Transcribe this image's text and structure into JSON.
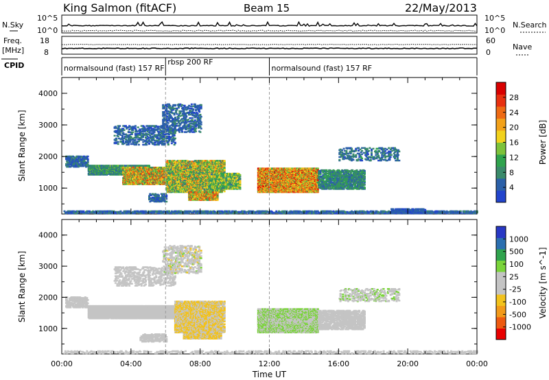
{
  "header": {
    "station": "King Salmon (fitACF)",
    "beam": "Beam 15",
    "date": "22/May/2013"
  },
  "strips": {
    "nsky_label": "N.Sky",
    "nsearch_label": "N.Search",
    "freq_label_line1": "Freq.",
    "freq_label_line2": "[MHz]",
    "nave_label": "Nave",
    "cpid_label": "CPID",
    "noise_left_ticks": [
      "10^5",
      "10^0"
    ],
    "noise_right_ticks": [
      "10^5",
      "10^0"
    ],
    "freq_left_ticks": [
      "18",
      "8"
    ],
    "freq_right_ticks": [
      "60",
      "0"
    ]
  },
  "cpid_segments": [
    {
      "label": "normalsound (fast) 157 RF",
      "start_hour": 0.0
    },
    {
      "label": "rbsp 200 RF",
      "start_hour": 6.0
    },
    {
      "label": "normalsound (fast) 157 RF",
      "start_hour": 12.0
    }
  ],
  "colors": {
    "power": [
      "#2244cc",
      "#2b60a8",
      "#3a8a6a",
      "#2fa34d",
      "#7dc23a",
      "#f2d21c",
      "#f2a11a",
      "#ee6a14",
      "#e83010",
      "#d80000"
    ],
    "velocity": [
      "#e80000",
      "#ee5a10",
      "#f29a1a",
      "#f2c21c",
      "#c4c4c4",
      "#c4c4c4",
      "#7ad43a",
      "#2fa34d",
      "#2b6fb0",
      "#2838c4"
    ]
  },
  "chart_data": [
    {
      "type": "heatmap",
      "title": "Power",
      "xlabel": "",
      "ylabel": "Slant Range [km]",
      "xlim": [
        0,
        24
      ],
      "ylim": [
        180,
        4500
      ],
      "x_ticks": [],
      "y_ticks": [
        "1000",
        "2000",
        "3000",
        "4000"
      ],
      "colorbar": {
        "label": "Power [dB]",
        "range": [
          0,
          32
        ],
        "tick_values": [
          4,
          8,
          12,
          16,
          20,
          24,
          28
        ],
        "tick_labels": [
          "4",
          "8",
          "12",
          "16",
          "20",
          "24",
          "28"
        ]
      },
      "scatter_regions": [
        {
          "t0": 0.1,
          "t1": 24.0,
          "r0": 230,
          "r1": 310,
          "density": 0.55,
          "values": [
            2,
            8
          ]
        },
        {
          "t0": 0.2,
          "t1": 1.5,
          "r0": 1700,
          "r1": 2050,
          "density": 0.5,
          "values": [
            2,
            8
          ]
        },
        {
          "t0": 1.5,
          "t1": 5.0,
          "r0": 1450,
          "r1": 1750,
          "density": 0.9,
          "values": [
            4,
            14
          ]
        },
        {
          "t0": 3.5,
          "t1": 8.0,
          "r0": 1150,
          "r1": 1700,
          "density": 0.8,
          "values": [
            8,
            28
          ]
        },
        {
          "t0": 6.0,
          "t1": 9.4,
          "r0": 900,
          "r1": 1900,
          "density": 0.65,
          "values": [
            6,
            24
          ]
        },
        {
          "t0": 7.3,
          "t1": 9.0,
          "r0": 650,
          "r1": 900,
          "density": 0.8,
          "values": [
            10,
            28
          ]
        },
        {
          "t0": 8.5,
          "t1": 10.3,
          "r0": 1000,
          "r1": 1500,
          "density": 0.6,
          "values": [
            6,
            20
          ]
        },
        {
          "t0": 11.3,
          "t1": 14.8,
          "r0": 900,
          "r1": 1650,
          "density": 0.9,
          "values": [
            12,
            30
          ]
        },
        {
          "t0": 14.8,
          "t1": 17.5,
          "r0": 1000,
          "r1": 1600,
          "density": 0.5,
          "values": [
            4,
            12
          ]
        },
        {
          "t0": 3.0,
          "t1": 6.5,
          "r0": 2400,
          "r1": 3000,
          "density": 0.25,
          "values": [
            2,
            8
          ]
        },
        {
          "t0": 5.8,
          "t1": 8.0,
          "r0": 2800,
          "r1": 3700,
          "density": 0.25,
          "values": [
            2,
            8
          ]
        },
        {
          "t0": 16.0,
          "t1": 19.5,
          "r0": 1900,
          "r1": 2300,
          "density": 0.2,
          "values": [
            2,
            10
          ]
        },
        {
          "t0": 5.0,
          "t1": 6.0,
          "r0": 600,
          "r1": 850,
          "density": 0.4,
          "values": [
            2,
            8
          ]
        },
        {
          "t0": 19.0,
          "t1": 21.0,
          "r0": 230,
          "r1": 380,
          "density": 0.6,
          "values": [
            2,
            6
          ]
        }
      ]
    },
    {
      "type": "heatmap",
      "title": "Velocity",
      "xlabel": "Time UT",
      "ylabel": "Slant Range [km]",
      "xlim": [
        0,
        24
      ],
      "ylim": [
        180,
        4500
      ],
      "x_ticks": [
        "00:00",
        "04:00",
        "08:00",
        "12:00",
        "16:00",
        "20:00",
        "00:00"
      ],
      "y_ticks": [
        "1000",
        "2000",
        "3000",
        "4000"
      ],
      "colorbar": {
        "label": "Velocity [m s^-1]",
        "range": [
          -1250,
          1250
        ],
        "tick_values": [
          -1000,
          -500,
          -100,
          -25,
          25,
          100,
          500,
          1000
        ],
        "tick_labels": [
          "-1000",
          "-500",
          "-100",
          "-25",
          "25",
          "100",
          "500",
          "1000"
        ]
      },
      "scatter_regions": [
        {
          "t0": 0.1,
          "t1": 24.0,
          "r0": 230,
          "r1": 310,
          "density": 0.3,
          "values": [
            -25,
            25
          ]
        },
        {
          "t0": 0.2,
          "t1": 1.5,
          "r0": 1700,
          "r1": 2050,
          "density": 0.5,
          "values": [
            -25,
            25
          ]
        },
        {
          "t0": 1.5,
          "t1": 7.5,
          "r0": 1350,
          "r1": 1750,
          "density": 0.95,
          "values": [
            -25,
            25
          ]
        },
        {
          "t0": 6.5,
          "t1": 9.4,
          "r0": 900,
          "r1": 1900,
          "density": 0.6,
          "values": [
            -500,
            -50
          ]
        },
        {
          "t0": 7.0,
          "t1": 9.2,
          "r0": 700,
          "r1": 900,
          "density": 0.8,
          "values": [
            -500,
            -100
          ]
        },
        {
          "t0": 11.3,
          "t1": 14.8,
          "r0": 900,
          "r1": 1650,
          "density": 0.85,
          "values": [
            25,
            500
          ]
        },
        {
          "t0": 11.3,
          "t1": 14.8,
          "r0": 1200,
          "r1": 1320,
          "density": 0.9,
          "values": [
            100,
            300
          ]
        },
        {
          "t0": 14.8,
          "t1": 17.5,
          "r0": 1000,
          "r1": 1600,
          "density": 0.5,
          "values": [
            25,
            200
          ]
        },
        {
          "t0": 3.0,
          "t1": 6.5,
          "r0": 2400,
          "r1": 3000,
          "density": 0.25,
          "values": [
            -25,
            25
          ]
        },
        {
          "t0": 5.8,
          "t1": 8.0,
          "r0": 2800,
          "r1": 3700,
          "density": 0.25,
          "values": [
            -300,
            300
          ]
        },
        {
          "t0": 16.0,
          "t1": 19.5,
          "r0": 1900,
          "r1": 2300,
          "density": 0.2,
          "values": [
            25,
            300
          ]
        },
        {
          "t0": 4.5,
          "t1": 6.0,
          "r0": 600,
          "r1": 850,
          "density": 0.4,
          "values": [
            -25,
            25
          ]
        }
      ]
    }
  ]
}
